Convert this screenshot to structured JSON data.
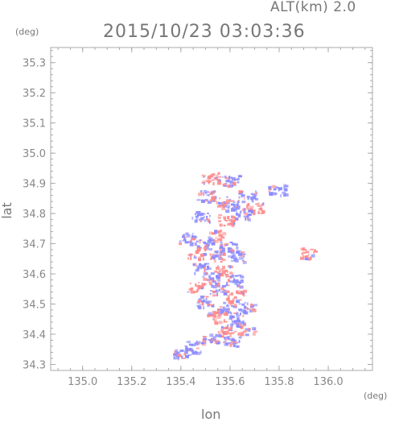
{
  "header": {
    "alt_label": "ALT(km) 2.0",
    "datetime": "2015/10/23 03:03:36"
  },
  "chart_data": {
    "type": "heatmap",
    "title": "2015/10/23 03:03:36",
    "xlabel": "lon",
    "ylabel": "lat",
    "x_unit": "(deg)",
    "y_unit": "(deg)",
    "xlim": [
      134.87,
      136.18
    ],
    "ylim": [
      34.28,
      35.35
    ],
    "xticks": [
      "135.0",
      "135.2",
      "135.4",
      "135.6",
      "135.8",
      "136.0"
    ],
    "yticks": [
      "34.3",
      "34.4",
      "34.5",
      "34.6",
      "34.7",
      "34.8",
      "34.9",
      "35.0",
      "35.1",
      "35.2",
      "35.3"
    ],
    "grid": false,
    "colors": {
      "positive": "#ff8a8a",
      "negative": "#8a8aff",
      "frame": "#aaaaaa"
    },
    "clusters": [
      {
        "lon": 135.52,
        "lat": 34.92,
        "sign": "pos"
      },
      {
        "lon": 135.6,
        "lat": 34.91,
        "sign": "neg"
      },
      {
        "lon": 135.5,
        "lat": 34.86,
        "sign": "neg"
      },
      {
        "lon": 135.55,
        "lat": 34.84,
        "sign": "pos"
      },
      {
        "lon": 135.6,
        "lat": 34.83,
        "sign": "neg"
      },
      {
        "lon": 135.67,
        "lat": 34.86,
        "sign": "neg"
      },
      {
        "lon": 135.7,
        "lat": 34.82,
        "sign": "pos"
      },
      {
        "lon": 135.65,
        "lat": 34.8,
        "sign": "neg"
      },
      {
        "lon": 135.79,
        "lat": 34.88,
        "sign": "neg"
      },
      {
        "lon": 135.48,
        "lat": 34.79,
        "sign": "neg"
      },
      {
        "lon": 135.58,
        "lat": 34.78,
        "sign": "pos"
      },
      {
        "lon": 135.42,
        "lat": 34.72,
        "sign": "neg"
      },
      {
        "lon": 135.54,
        "lat": 34.73,
        "sign": "pos"
      },
      {
        "lon": 135.49,
        "lat": 34.7,
        "sign": "neg"
      },
      {
        "lon": 135.59,
        "lat": 34.69,
        "sign": "neg"
      },
      {
        "lon": 135.46,
        "lat": 34.67,
        "sign": "pos"
      },
      {
        "lon": 135.55,
        "lat": 34.66,
        "sign": "pos"
      },
      {
        "lon": 135.62,
        "lat": 34.66,
        "sign": "neg"
      },
      {
        "lon": 135.92,
        "lat": 34.67,
        "sign": "pos"
      },
      {
        "lon": 135.48,
        "lat": 34.62,
        "sign": "neg"
      },
      {
        "lon": 135.57,
        "lat": 34.61,
        "sign": "pos"
      },
      {
        "lon": 135.52,
        "lat": 34.59,
        "sign": "neg"
      },
      {
        "lon": 135.61,
        "lat": 34.58,
        "sign": "neg"
      },
      {
        "lon": 135.46,
        "lat": 34.56,
        "sign": "pos"
      },
      {
        "lon": 135.55,
        "lat": 34.55,
        "sign": "neg"
      },
      {
        "lon": 135.62,
        "lat": 34.53,
        "sign": "pos"
      },
      {
        "lon": 135.5,
        "lat": 34.51,
        "sign": "neg"
      },
      {
        "lon": 135.58,
        "lat": 34.49,
        "sign": "neg"
      },
      {
        "lon": 135.66,
        "lat": 34.49,
        "sign": "neg"
      },
      {
        "lon": 135.54,
        "lat": 34.46,
        "sign": "pos"
      },
      {
        "lon": 135.62,
        "lat": 34.45,
        "sign": "neg"
      },
      {
        "lon": 135.66,
        "lat": 34.42,
        "sign": "pos"
      },
      {
        "lon": 135.58,
        "lat": 34.41,
        "sign": "pos"
      },
      {
        "lon": 135.52,
        "lat": 34.39,
        "sign": "neg"
      },
      {
        "lon": 135.6,
        "lat": 34.38,
        "sign": "neg"
      },
      {
        "lon": 135.45,
        "lat": 34.36,
        "sign": "neg"
      },
      {
        "lon": 135.4,
        "lat": 34.34,
        "sign": "neg"
      }
    ]
  }
}
